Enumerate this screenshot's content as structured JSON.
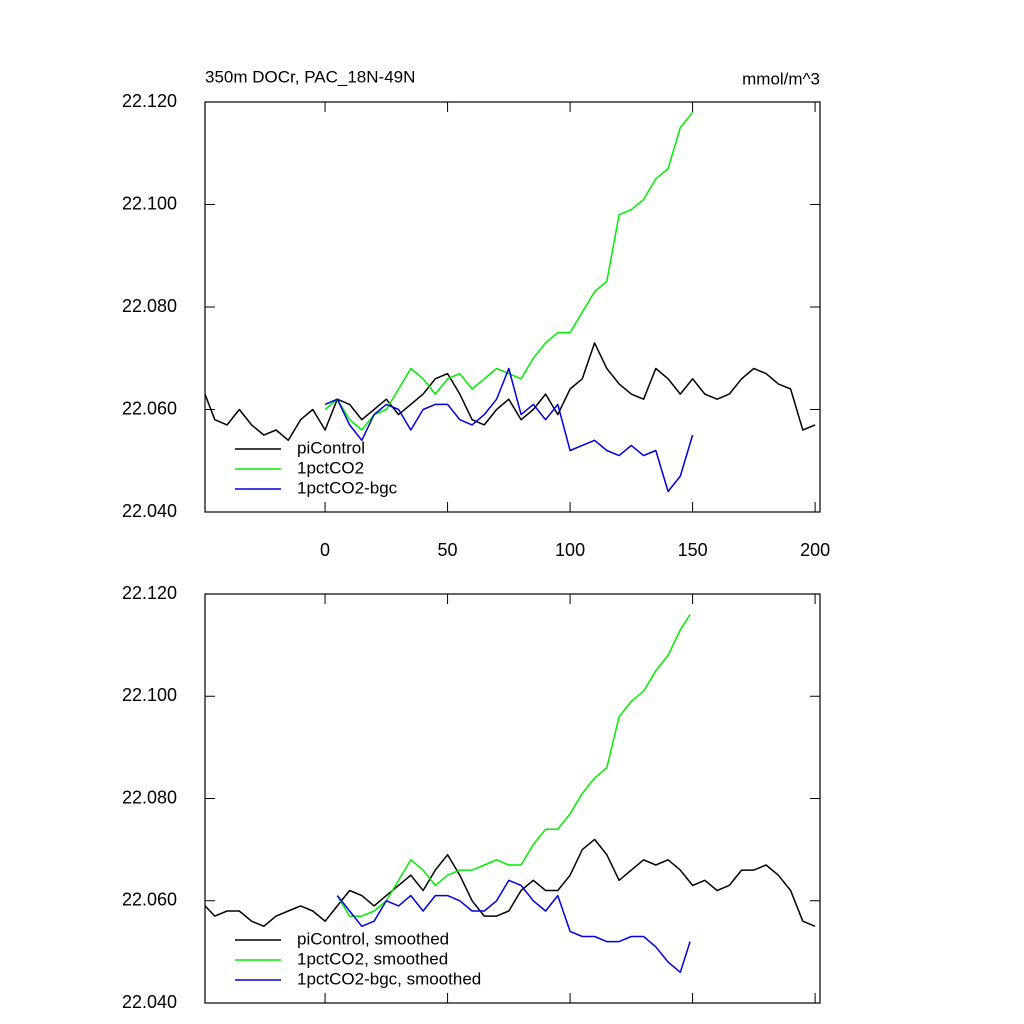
{
  "chart_data": [
    {
      "type": "line",
      "title": "350m DOCr, PAC_18N-49N",
      "units": "mmol/m^3",
      "xlim": [
        -49,
        202
      ],
      "xticks": [
        0,
        50,
        100,
        150,
        200
      ],
      "ylim": [
        22.04,
        22.12
      ],
      "yticks": [
        {
          "value": 22.04,
          "label": "22.040"
        },
        {
          "value": 22.06,
          "label": "22.060"
        },
        {
          "value": 22.08,
          "label": "22.080"
        },
        {
          "value": 22.1,
          "label": "22.100"
        },
        {
          "value": 22.12,
          "label": "22.120"
        }
      ],
      "legend": "lower left",
      "series": [
        {
          "name": "piControl",
          "color": "#000000",
          "x": [
            -49,
            -45,
            -40,
            -35,
            -30,
            -25,
            -20,
            -15,
            -10,
            -5,
            0,
            5,
            10,
            15,
            20,
            25,
            30,
            35,
            40,
            45,
            50,
            55,
            60,
            65,
            70,
            75,
            80,
            85,
            90,
            95,
            100,
            105,
            110,
            115,
            120,
            125,
            130,
            135,
            140,
            145,
            150,
            155,
            160,
            165,
            170,
            175,
            180,
            185,
            190,
            195,
            200
          ],
          "values": [
            22.063,
            22.058,
            22.057,
            22.06,
            22.057,
            22.055,
            22.056,
            22.054,
            22.058,
            22.06,
            22.056,
            22.062,
            22.061,
            22.058,
            22.06,
            22.062,
            22.059,
            22.061,
            22.063,
            22.066,
            22.067,
            22.063,
            22.058,
            22.057,
            22.06,
            22.062,
            22.058,
            22.06,
            22.063,
            22.059,
            22.064,
            22.066,
            22.073,
            22.068,
            22.065,
            22.063,
            22.062,
            22.068,
            22.066,
            22.063,
            22.066,
            22.063,
            22.062,
            22.063,
            22.066,
            22.068,
            22.067,
            22.065,
            22.064,
            22.056,
            22.057
          ]
        },
        {
          "name": "1pctCO2",
          "color": "#00ee00",
          "x": [
            0,
            5,
            10,
            15,
            20,
            25,
            30,
            35,
            40,
            45,
            50,
            55,
            60,
            65,
            70,
            75,
            80,
            85,
            90,
            95,
            100,
            105,
            110,
            115,
            120,
            125,
            130,
            135,
            140,
            145,
            150
          ],
          "values": [
            22.06,
            22.062,
            22.058,
            22.056,
            22.059,
            22.06,
            22.064,
            22.068,
            22.066,
            22.063,
            22.066,
            22.067,
            22.064,
            22.066,
            22.068,
            22.067,
            22.066,
            22.07,
            22.073,
            22.075,
            22.075,
            22.079,
            22.083,
            22.085,
            22.098,
            22.099,
            22.101,
            22.105,
            22.107,
            22.115,
            22.118
          ]
        },
        {
          "name": "1pctCO2-bgc",
          "color": "#0000dd",
          "x": [
            0,
            5,
            10,
            15,
            20,
            25,
            30,
            35,
            40,
            45,
            50,
            55,
            60,
            65,
            70,
            75,
            80,
            85,
            90,
            95,
            100,
            105,
            110,
            115,
            120,
            125,
            130,
            135,
            140,
            145,
            150
          ],
          "values": [
            22.061,
            22.062,
            22.057,
            22.054,
            22.059,
            22.061,
            22.06,
            22.056,
            22.06,
            22.061,
            22.061,
            22.058,
            22.057,
            22.059,
            22.062,
            22.068,
            22.059,
            22.061,
            22.058,
            22.061,
            22.052,
            22.053,
            22.054,
            22.052,
            22.051,
            22.053,
            22.051,
            22.052,
            22.044,
            22.047,
            22.055
          ]
        }
      ]
    },
    {
      "type": "line",
      "xlim": [
        -49,
        202
      ],
      "ylim": [
        22.04,
        22.12
      ],
      "yticks": [
        {
          "value": 22.04,
          "label": "22.040"
        },
        {
          "value": 22.06,
          "label": "22.060"
        },
        {
          "value": 22.08,
          "label": "22.080"
        },
        {
          "value": 22.1,
          "label": "22.100"
        },
        {
          "value": 22.12,
          "label": "22.120"
        }
      ],
      "legend": "lower left",
      "series": [
        {
          "name": "piControl, smoothed",
          "color": "#000000",
          "x": [
            -49,
            -45,
            -40,
            -35,
            -30,
            -25,
            -20,
            -15,
            -10,
            -5,
            0,
            5,
            10,
            15,
            20,
            25,
            30,
            35,
            40,
            45,
            50,
            55,
            60,
            65,
            70,
            75,
            80,
            85,
            90,
            95,
            100,
            105,
            110,
            115,
            120,
            125,
            130,
            135,
            140,
            145,
            150,
            155,
            160,
            165,
            170,
            175,
            180,
            185,
            190,
            195,
            200
          ],
          "values": [
            22.059,
            22.057,
            22.058,
            22.058,
            22.056,
            22.055,
            22.057,
            22.058,
            22.059,
            22.058,
            22.056,
            22.059,
            22.062,
            22.061,
            22.059,
            22.061,
            22.063,
            22.065,
            22.062,
            22.066,
            22.069,
            22.065,
            22.06,
            22.057,
            22.057,
            22.058,
            22.062,
            22.064,
            22.062,
            22.062,
            22.065,
            22.07,
            22.072,
            22.069,
            22.064,
            22.066,
            22.068,
            22.067,
            22.068,
            22.066,
            22.063,
            22.064,
            22.062,
            22.063,
            22.066,
            22.066,
            22.067,
            22.065,
            22.062,
            22.056,
            22.055
          ]
        },
        {
          "name": "1pctCO2, smoothed",
          "color": "#00ee00",
          "x": [
            5,
            10,
            15,
            20,
            25,
            30,
            35,
            40,
            45,
            50,
            55,
            60,
            65,
            70,
            75,
            80,
            85,
            90,
            95,
            100,
            105,
            110,
            115,
            120,
            125,
            130,
            135,
            140,
            145,
            149
          ],
          "values": [
            22.061,
            22.057,
            22.057,
            22.058,
            22.06,
            22.064,
            22.068,
            22.066,
            22.063,
            22.065,
            22.066,
            22.066,
            22.067,
            22.068,
            22.067,
            22.067,
            22.071,
            22.074,
            22.074,
            22.077,
            22.081,
            22.084,
            22.086,
            22.096,
            22.099,
            22.101,
            22.105,
            22.108,
            22.113,
            22.116
          ]
        },
        {
          "name": "1pctCO2-bgc, smoothed",
          "color": "#0000dd",
          "x": [
            5,
            10,
            15,
            20,
            25,
            30,
            35,
            40,
            45,
            50,
            55,
            60,
            65,
            70,
            75,
            80,
            85,
            90,
            95,
            100,
            105,
            110,
            115,
            120,
            125,
            130,
            135,
            140,
            145,
            149
          ],
          "values": [
            22.061,
            22.058,
            22.055,
            22.056,
            22.06,
            22.059,
            22.061,
            22.058,
            22.061,
            22.061,
            22.06,
            22.058,
            22.058,
            22.06,
            22.064,
            22.063,
            22.06,
            22.058,
            22.061,
            22.054,
            22.053,
            22.053,
            22.052,
            22.052,
            22.053,
            22.053,
            22.051,
            22.048,
            22.046,
            22.052
          ]
        }
      ]
    }
  ]
}
